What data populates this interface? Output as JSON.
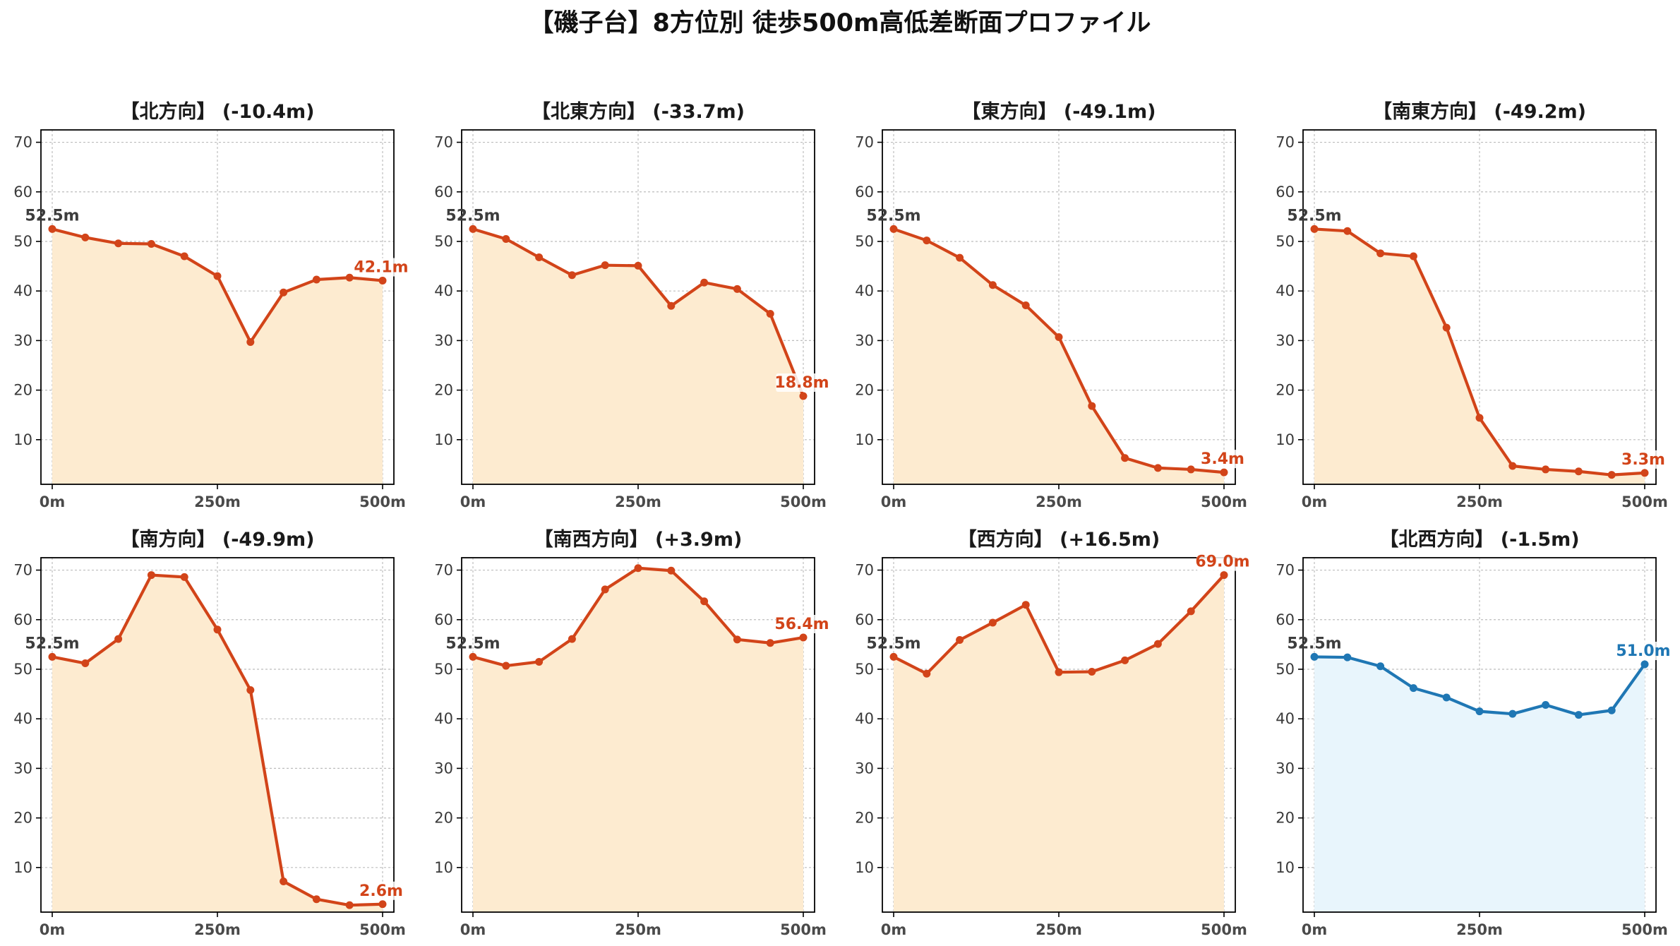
{
  "title": "【磯子台】8方位別 徒歩500m高低差断面プロファイル",
  "colors": {
    "down_line": "#d24419",
    "down_fill": "#fdebd0",
    "flat_line": "#1f77b4",
    "flat_fill": "#e8f5fc",
    "grid": "#bdbdbd",
    "axis": "#000000"
  },
  "chart_data": [
    {
      "type": "area",
      "title": "【北方向】 (-10.4m)",
      "style": "down",
      "x": [
        0,
        50,
        100,
        150,
        200,
        250,
        300,
        350,
        400,
        450,
        500
      ],
      "y": [
        52.5,
        50.8,
        49.6,
        49.5,
        47.0,
        43.0,
        29.7,
        39.7,
        42.3,
        42.7,
        42.1
      ],
      "start_label": "52.5m",
      "end_label": "42.1m",
      "xticks": [
        "0m",
        "250m",
        "500m"
      ],
      "yticks": [
        10,
        20,
        30,
        40,
        50,
        60,
        70
      ],
      "xlim": [
        0,
        500
      ],
      "ylim": [
        1,
        72.5
      ],
      "grid": true
    },
    {
      "type": "area",
      "title": "【北東方向】 (-33.7m)",
      "style": "down",
      "x": [
        0,
        50,
        100,
        150,
        200,
        250,
        300,
        350,
        400,
        450,
        500
      ],
      "y": [
        52.5,
        50.5,
        46.8,
        43.2,
        45.2,
        45.1,
        37.0,
        41.7,
        40.4,
        35.4,
        18.8
      ],
      "start_label": "52.5m",
      "end_label": "18.8m",
      "xticks": [
        "0m",
        "250m",
        "500m"
      ],
      "yticks": [
        10,
        20,
        30,
        40,
        50,
        60,
        70
      ],
      "xlim": [
        0,
        500
      ],
      "ylim": [
        1,
        72.5
      ],
      "grid": true
    },
    {
      "type": "area",
      "title": "【東方向】 (-49.1m)",
      "style": "down",
      "x": [
        0,
        50,
        100,
        150,
        200,
        250,
        300,
        350,
        400,
        450,
        500
      ],
      "y": [
        52.5,
        50.2,
        46.7,
        41.2,
        37.1,
        30.7,
        16.8,
        6.3,
        4.3,
        4.0,
        3.4
      ],
      "start_label": "52.5m",
      "end_label": "3.4m",
      "xticks": [
        "0m",
        "250m",
        "500m"
      ],
      "yticks": [
        10,
        20,
        30,
        40,
        50,
        60,
        70
      ],
      "xlim": [
        0,
        500
      ],
      "ylim": [
        1,
        72.5
      ],
      "grid": true
    },
    {
      "type": "area",
      "title": "【南東方向】 (-49.2m)",
      "style": "down",
      "x": [
        0,
        50,
        100,
        150,
        200,
        250,
        300,
        350,
        400,
        450,
        500
      ],
      "y": [
        52.5,
        52.1,
        47.6,
        47.0,
        32.6,
        14.4,
        4.7,
        4.0,
        3.6,
        2.9,
        3.3
      ],
      "start_label": "52.5m",
      "end_label": "3.3m",
      "xticks": [
        "0m",
        "250m",
        "500m"
      ],
      "yticks": [
        10,
        20,
        30,
        40,
        50,
        60,
        70
      ],
      "xlim": [
        0,
        500
      ],
      "ylim": [
        1,
        72.5
      ],
      "grid": true
    },
    {
      "type": "area",
      "title": "【南方向】 (-49.9m)",
      "style": "down",
      "x": [
        0,
        50,
        100,
        150,
        200,
        250,
        300,
        350,
        400,
        450,
        500
      ],
      "y": [
        52.5,
        51.2,
        56.1,
        69.0,
        68.6,
        58.0,
        45.8,
        7.2,
        3.6,
        2.4,
        2.6
      ],
      "start_label": "52.5m",
      "end_label": "2.6m",
      "xticks": [
        "0m",
        "250m",
        "500m"
      ],
      "yticks": [
        10,
        20,
        30,
        40,
        50,
        60,
        70
      ],
      "xlim": [
        0,
        500
      ],
      "ylim": [
        1,
        72.5
      ],
      "grid": true
    },
    {
      "type": "area",
      "title": "【南西方向】 (+3.9m)",
      "style": "down",
      "x": [
        0,
        50,
        100,
        150,
        200,
        250,
        300,
        350,
        400,
        450,
        500
      ],
      "y": [
        52.5,
        50.7,
        51.5,
        56.1,
        66.1,
        70.4,
        69.9,
        63.7,
        56.0,
        55.3,
        56.4
      ],
      "start_label": "52.5m",
      "end_label": "56.4m",
      "xticks": [
        "0m",
        "250m",
        "500m"
      ],
      "yticks": [
        10,
        20,
        30,
        40,
        50,
        60,
        70
      ],
      "xlim": [
        0,
        500
      ],
      "ylim": [
        1,
        72.5
      ],
      "grid": true
    },
    {
      "type": "area",
      "title": "【西方向】 (+16.5m)",
      "style": "down",
      "x": [
        0,
        50,
        100,
        150,
        200,
        250,
        300,
        350,
        400,
        450,
        500
      ],
      "y": [
        52.5,
        49.1,
        55.9,
        59.4,
        63.0,
        49.4,
        49.5,
        51.8,
        55.1,
        61.7,
        69.0
      ],
      "start_label": "52.5m",
      "end_label": "69.0m",
      "xticks": [
        "0m",
        "250m",
        "500m"
      ],
      "yticks": [
        10,
        20,
        30,
        40,
        50,
        60,
        70
      ],
      "xlim": [
        0,
        500
      ],
      "ylim": [
        1,
        72.5
      ],
      "grid": true
    },
    {
      "type": "area",
      "title": "【北西方向】 (-1.5m)",
      "style": "flat",
      "x": [
        0,
        50,
        100,
        150,
        200,
        250,
        300,
        350,
        400,
        450,
        500
      ],
      "y": [
        52.5,
        52.4,
        50.6,
        46.2,
        44.3,
        41.5,
        41.0,
        42.8,
        40.8,
        41.7,
        51.0
      ],
      "start_label": "52.5m",
      "end_label": "51.0m",
      "xticks": [
        "0m",
        "250m",
        "500m"
      ],
      "yticks": [
        10,
        20,
        30,
        40,
        50,
        60,
        70
      ],
      "xlim": [
        0,
        500
      ],
      "ylim": [
        1,
        72.5
      ],
      "grid": true
    }
  ]
}
